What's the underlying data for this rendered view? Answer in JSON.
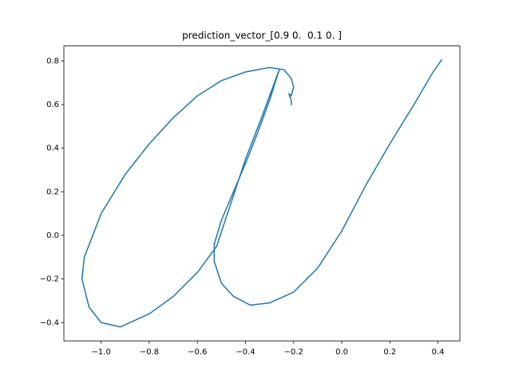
{
  "chart_data": {
    "type": "line",
    "title": "prediction_vector_[0.9 0.  0.1 0. ]",
    "series": [
      {
        "color": "#1f77b4",
        "x": [
          0.415,
          0.38,
          0.3,
          0.2,
          0.1,
          0.0,
          -0.1,
          -0.2,
          -0.3,
          -0.38,
          -0.45,
          -0.5,
          -0.53,
          -0.53,
          -0.5,
          -0.45,
          -0.4,
          -0.35,
          -0.3,
          -0.26,
          -0.28,
          -0.33,
          -0.4,
          -0.46,
          -0.52,
          -0.6,
          -0.7,
          -0.8,
          -0.92,
          -1.0,
          -1.05,
          -1.08,
          -1.07,
          -1.0,
          -0.9,
          -0.8,
          -0.7,
          -0.6,
          -0.5,
          -0.4,
          -0.3,
          -0.24,
          -0.21,
          -0.2,
          -0.21,
          -0.22,
          -0.21,
          -0.21
        ],
        "values": [
          0.805,
          0.75,
          0.6,
          0.42,
          0.23,
          0.02,
          -0.15,
          -0.26,
          -0.31,
          -0.32,
          -0.28,
          -0.22,
          -0.12,
          -0.04,
          0.07,
          0.2,
          0.33,
          0.47,
          0.62,
          0.76,
          0.7,
          0.55,
          0.35,
          0.15,
          -0.05,
          -0.17,
          -0.28,
          -0.36,
          -0.42,
          -0.4,
          -0.33,
          -0.2,
          -0.1,
          0.1,
          0.28,
          0.42,
          0.54,
          0.64,
          0.71,
          0.75,
          0.77,
          0.76,
          0.72,
          0.68,
          0.64,
          0.65,
          0.62,
          0.6
        ]
      }
    ],
    "xlim": [
      -1.155,
      0.491
    ],
    "xticks": [
      {
        "value": -1.0,
        "label": "−1.0"
      },
      {
        "value": -0.8,
        "label": "−0.8"
      },
      {
        "value": -0.6,
        "label": "−0.6"
      },
      {
        "value": -0.4,
        "label": "−0.4"
      },
      {
        "value": -0.2,
        "label": "−0.2"
      },
      {
        "value": 0,
        "label": "0.0"
      },
      0.2,
      0.4
    ],
    "ylim": [
      -0.484,
      0.869
    ],
    "yticks": [
      {
        "value": -0.4,
        "label": "−0.4"
      },
      {
        "value": -0.2,
        "label": "−0.2"
      },
      {
        "value": 0,
        "label": "0.0"
      },
      0.2,
      0.4,
      0.6,
      0.8
    ],
    "grid": false
  }
}
